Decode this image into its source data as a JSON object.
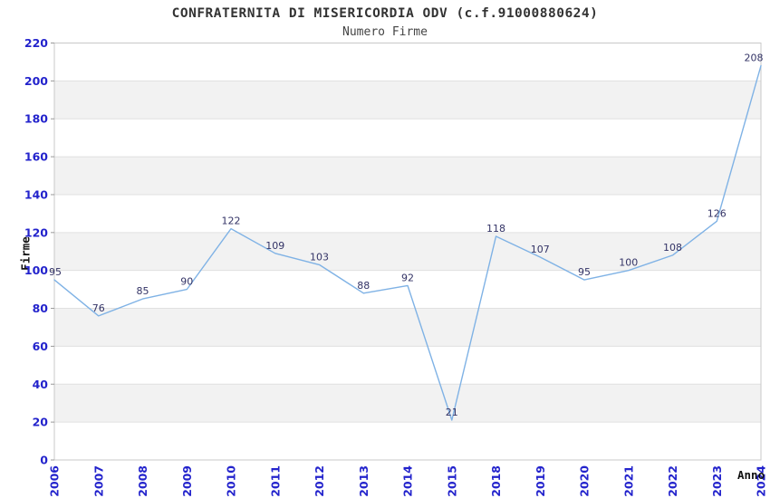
{
  "chart_data": {
    "type": "line",
    "title": "CONFRATERNITA DI MISERICORDIA ODV (c.f.91000880624)",
    "subtitle": "Numero Firme",
    "xlabel": "Anno",
    "ylabel": "Firme",
    "categories": [
      "2006",
      "2007",
      "2008",
      "2009",
      "2010",
      "2011",
      "2012",
      "2013",
      "2014",
      "2015",
      "2018",
      "2019",
      "2020",
      "2021",
      "2022",
      "2023",
      "2024"
    ],
    "values": [
      95,
      76,
      85,
      90,
      122,
      109,
      103,
      88,
      92,
      21,
      118,
      107,
      95,
      100,
      108,
      126,
      208
    ],
    "point_labels": [
      "95",
      "76",
      "85",
      "90",
      "122",
      "109",
      "103",
      "88",
      "92",
      "21",
      "118",
      "107",
      "95",
      "100",
      "108",
      "126",
      "208"
    ],
    "ylim": [
      0,
      220
    ],
    "ytick_step": 20,
    "ytick_labels": [
      "0",
      "20",
      "40",
      "60",
      "80",
      "100",
      "120",
      "140",
      "160",
      "180",
      "200",
      "220"
    ],
    "grid": "horizontal-bands-alternating",
    "legend": "none",
    "colors": {
      "line": "#7fb2e5",
      "tick_label_blue": "#2323cc",
      "point_label_navy": "#333366",
      "band_fill_gray": "#f2f2f2",
      "grid_line": "#e0e0e0",
      "plot_border": "#c8c8c8",
      "axis_tick_mark": "#999999",
      "title_text": "#333333",
      "background": "#ffffff"
    }
  }
}
